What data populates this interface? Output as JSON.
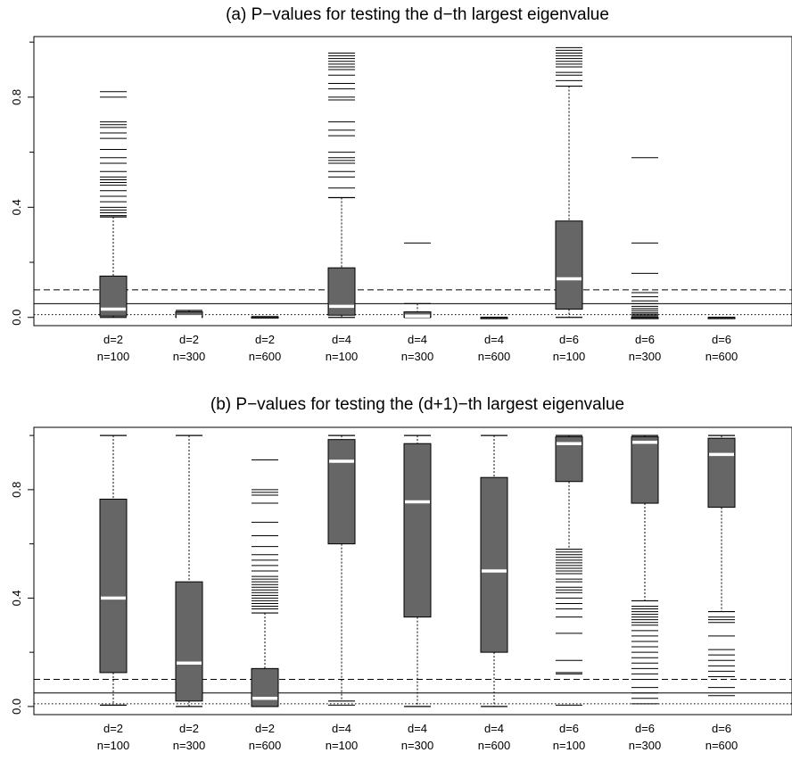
{
  "chart_data": [
    {
      "type": "boxplot",
      "title": "(a) P−values for testing the d−th largest eigenvalue",
      "xlabel": "",
      "ylabel": "",
      "ylim": [
        -0.03,
        1.02
      ],
      "yticks": [
        0.0,
        0.4,
        0.8
      ],
      "ytick_labels": [
        "0.0",
        "0.4",
        "0.8"
      ],
      "categories": [
        {
          "line1": "d=2",
          "line2": "n=100"
        },
        {
          "line1": "d=2",
          "line2": "n=300"
        },
        {
          "line1": "d=2",
          "line2": "n=600"
        },
        {
          "line1": "d=4",
          "line2": "n=100"
        },
        {
          "line1": "d=4",
          "line2": "n=300"
        },
        {
          "line1": "d=4",
          "line2": "n=600"
        },
        {
          "line1": "d=6",
          "line2": "n=100"
        },
        {
          "line1": "d=6",
          "line2": "n=300"
        },
        {
          "line1": "d=6",
          "line2": "n=600"
        }
      ],
      "boxes": [
        {
          "wlo": 0.0,
          "q1": 0.005,
          "med": 0.03,
          "q3": 0.15,
          "whi": 0.365,
          "outliers": [
            0.37,
            0.38,
            0.39,
            0.4,
            0.42,
            0.44,
            0.46,
            0.48,
            0.49,
            0.5,
            0.51,
            0.53,
            0.56,
            0.58,
            0.61,
            0.65,
            0.67,
            0.69,
            0.7,
            0.71,
            0.8,
            0.82
          ]
        },
        {
          "wlo": 0.0,
          "q1": 0.0,
          "med": 0.003,
          "q3": 0.02,
          "whi": 0.025,
          "outliers": []
        },
        {
          "wlo": 0.0,
          "q1": 0.0,
          "med": 0.0,
          "q3": 0.002,
          "whi": 0.003,
          "outliers": []
        },
        {
          "wlo": 0.0,
          "q1": 0.008,
          "med": 0.04,
          "q3": 0.18,
          "whi": 0.435,
          "outliers": [
            0.47,
            0.51,
            0.53,
            0.56,
            0.57,
            0.58,
            0.6,
            0.66,
            0.68,
            0.71,
            0.79,
            0.8,
            0.83,
            0.85,
            0.88,
            0.9,
            0.91,
            0.92,
            0.93,
            0.94,
            0.95,
            0.96
          ]
        },
        {
          "wlo": 0.0,
          "q1": 0.0,
          "med": 0.005,
          "q3": 0.02,
          "whi": 0.05,
          "outliers": [
            0.27
          ]
        },
        {
          "wlo": 0.0,
          "q1": 0.0,
          "med": 0.0,
          "q3": 0.0,
          "whi": 0.0,
          "outliers": []
        },
        {
          "wlo": 0.0,
          "q1": 0.03,
          "med": 0.14,
          "q3": 0.35,
          "whi": 0.84,
          "outliers": [
            0.86,
            0.88,
            0.89,
            0.91,
            0.92,
            0.93,
            0.94,
            0.95,
            0.96,
            0.97,
            0.98
          ]
        },
        {
          "wlo": 0.0,
          "q1": 0.0,
          "med": 0.0,
          "q3": 0.0,
          "whi": 0.0,
          "outliers": [
            0.003,
            0.008,
            0.012,
            0.018,
            0.025,
            0.032,
            0.04,
            0.05,
            0.06,
            0.075,
            0.09,
            0.16,
            0.27,
            0.58
          ]
        },
        {
          "wlo": 0.0,
          "q1": 0.0,
          "med": 0.0,
          "q3": 0.0,
          "whi": 0.0,
          "outliers": []
        }
      ],
      "reference_lines": [
        {
          "y": 0.1,
          "style": "dashed"
        },
        {
          "y": 0.05,
          "style": "solid"
        },
        {
          "y": 0.01,
          "style": "dotted"
        }
      ]
    },
    {
      "type": "boxplot",
      "title": "(b) P−values for testing the (d+1)−th largest eigenvalue",
      "xlabel": "",
      "ylabel": "",
      "ylim": [
        -0.03,
        1.03
      ],
      "yticks": [
        0.0,
        0.4,
        0.8
      ],
      "ytick_labels": [
        "0.0",
        "0.4",
        "0.8"
      ],
      "categories": [
        {
          "line1": "d=2",
          "line2": "n=100"
        },
        {
          "line1": "d=2",
          "line2": "n=300"
        },
        {
          "line1": "d=2",
          "line2": "n=600"
        },
        {
          "line1": "d=4",
          "line2": "n=100"
        },
        {
          "line1": "d=4",
          "line2": "n=300"
        },
        {
          "line1": "d=4",
          "line2": "n=600"
        },
        {
          "line1": "d=6",
          "line2": "n=100"
        },
        {
          "line1": "d=6",
          "line2": "n=300"
        },
        {
          "line1": "d=6",
          "line2": "n=600"
        }
      ],
      "boxes": [
        {
          "wlo": 0.005,
          "q1": 0.125,
          "med": 0.4,
          "q3": 0.765,
          "whi": 1.0,
          "outliers": []
        },
        {
          "wlo": 0.0,
          "q1": 0.02,
          "med": 0.16,
          "q3": 0.46,
          "whi": 1.0,
          "outliers": []
        },
        {
          "wlo": 0.0,
          "q1": 0.0,
          "med": 0.03,
          "q3": 0.14,
          "whi": 0.345,
          "outliers": [
            0.36,
            0.37,
            0.38,
            0.39,
            0.4,
            0.41,
            0.42,
            0.43,
            0.44,
            0.45,
            0.46,
            0.47,
            0.48,
            0.5,
            0.52,
            0.54,
            0.56,
            0.59,
            0.63,
            0.68,
            0.75,
            0.78,
            0.79,
            0.8,
            0.91
          ]
        },
        {
          "wlo": 0.02,
          "q1": 0.6,
          "med": 0.905,
          "q3": 0.985,
          "whi": 1.0,
          "outliers": [
            0.005
          ]
        },
        {
          "wlo": 0.0,
          "q1": 0.33,
          "med": 0.755,
          "q3": 0.97,
          "whi": 1.0,
          "outliers": []
        },
        {
          "wlo": 0.0,
          "q1": 0.2,
          "med": 0.5,
          "q3": 0.845,
          "whi": 1.0,
          "outliers": []
        },
        {
          "wlo": 0.58,
          "q1": 0.83,
          "med": 0.97,
          "q3": 0.995,
          "whi": 1.0,
          "outliers": [
            0.005,
            0.12,
            0.125,
            0.17,
            0.27,
            0.33,
            0.36,
            0.38,
            0.4,
            0.42,
            0.43,
            0.44,
            0.46,
            0.47,
            0.49,
            0.5,
            0.51,
            0.52,
            0.53,
            0.54,
            0.55,
            0.56,
            0.57
          ]
        },
        {
          "wlo": 0.39,
          "q1": 0.75,
          "med": 0.975,
          "q3": 0.995,
          "whi": 1.0,
          "outliers": [
            0.01,
            0.03,
            0.05,
            0.07,
            0.1,
            0.12,
            0.14,
            0.16,
            0.18,
            0.2,
            0.22,
            0.24,
            0.26,
            0.28,
            0.3,
            0.31,
            0.32,
            0.33,
            0.34,
            0.35,
            0.36,
            0.37
          ]
        },
        {
          "wlo": 0.35,
          "q1": 0.735,
          "med": 0.93,
          "q3": 0.99,
          "whi": 1.0,
          "outliers": [
            0.04,
            0.07,
            0.11,
            0.13,
            0.15,
            0.17,
            0.19,
            0.21,
            0.26,
            0.31,
            0.32,
            0.33
          ]
        }
      ],
      "reference_lines": [
        {
          "y": 0.1,
          "style": "dashed"
        },
        {
          "y": 0.05,
          "style": "solid"
        },
        {
          "y": 0.01,
          "style": "dotted"
        }
      ]
    }
  ],
  "colors": {
    "box_fill": "#666666",
    "median": "#ffffff",
    "lines": "#000000",
    "background": "#ffffff"
  }
}
